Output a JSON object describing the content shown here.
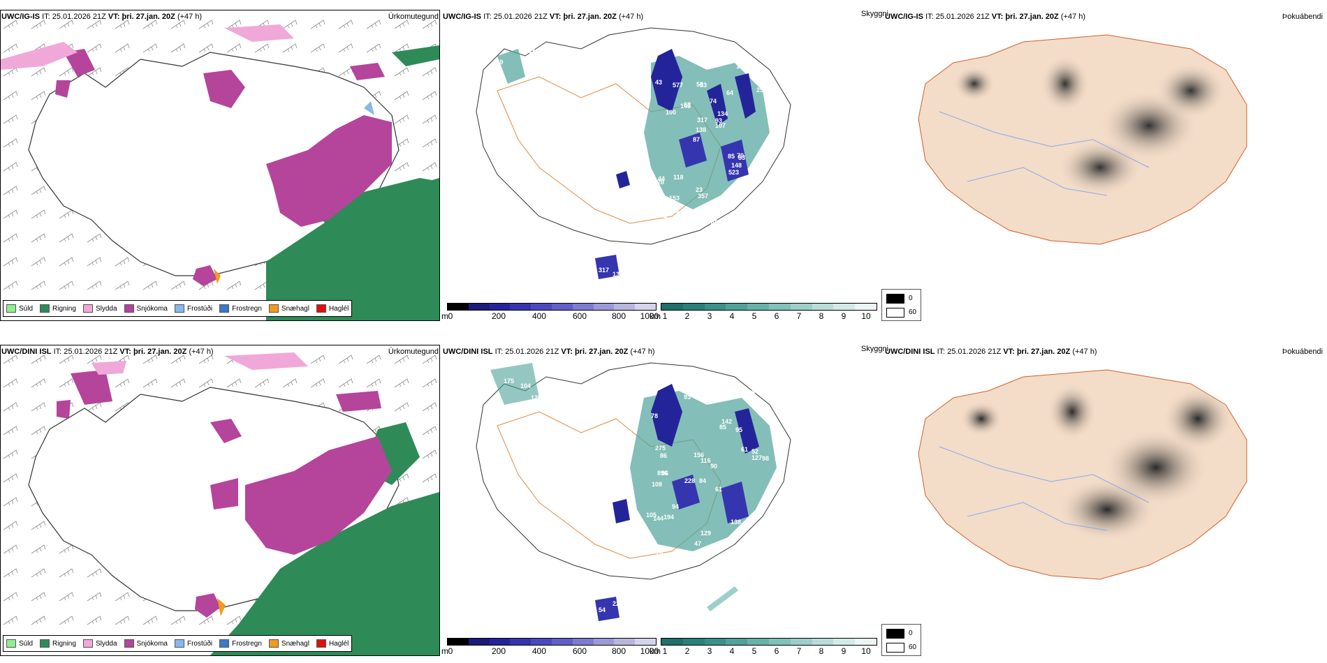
{
  "rows": [
    {
      "model": "UWC/IG-IS",
      "it_label": "IT:",
      "it_value": "25.01.2026 21Z",
      "vt_label": "VT:",
      "vt_value": "þri. 27.jan. 20Z",
      "lead": "(+47 h)",
      "cloud_labels": [
        "26",
        "119",
        "63",
        "87",
        "64",
        "61",
        "58",
        "74",
        "44",
        "68",
        "108",
        "153",
        "53",
        "134",
        "83",
        "43",
        "19",
        "82",
        "85",
        "130",
        "138",
        "23",
        "317",
        "577",
        "100",
        "118",
        "103",
        "106",
        "70",
        "430",
        "146",
        "100",
        "523",
        "91",
        "78",
        "93",
        "115",
        "357",
        "107",
        "128",
        "256",
        "145",
        "148",
        "93",
        "317",
        "138"
      ]
    },
    {
      "model": "UWC/DINI ISL",
      "it_label": "IT:",
      "it_value": "25.01.2026 21Z",
      "vt_label": "VT:",
      "vt_value": "þri. 27.jan. 20Z",
      "lead": "(+47 h)",
      "cloud_labels": [
        "175",
        "104",
        "129",
        "84",
        "61",
        "56",
        "78",
        "95",
        "108",
        "85",
        "90",
        "76",
        "93",
        "228",
        "120",
        "795",
        "129",
        "98",
        "61",
        "94",
        "86",
        "896",
        "161",
        "98",
        "105",
        "275",
        "116",
        "127",
        "110",
        "144",
        "216",
        "142",
        "194",
        "156",
        "138",
        "110",
        "52",
        "47",
        "54",
        "228"
      ]
    }
  ],
  "panel_titles": {
    "precip": "Úrkomutegund",
    "visibility": "Skyggni",
    "fog": "Þokuábendi"
  },
  "precip_legend": [
    {
      "label": "Súld",
      "color": "#90ee90"
    },
    {
      "label": "Rigning",
      "color": "#2e8b57"
    },
    {
      "label": "Slydda",
      "color": "#f0a8d8"
    },
    {
      "label": "Snjókoma",
      "color": "#b5449b"
    },
    {
      "label": "Frostúði",
      "color": "#87b8ea"
    },
    {
      "label": "Frostregn",
      "color": "#3a78c8"
    },
    {
      "label": "Snæhagl",
      "color": "#f09a20"
    },
    {
      "label": "Haglél",
      "color": "#e01010"
    }
  ],
  "ceiling_scale": {
    "unit": "m",
    "ticks": [
      "0",
      "200",
      "400",
      "600",
      "800",
      "1000"
    ],
    "colors": [
      "#000000",
      "#1a1a7a",
      "#24249a",
      "#3535b0",
      "#4a4ac0",
      "#6060c8",
      "#7c7cd0",
      "#9a9ad8",
      "#b6b6e0",
      "#d4d4ec"
    ]
  },
  "visibility_scale": {
    "unit": "km",
    "ticks": [
      "1",
      "2",
      "3",
      "4",
      "5",
      "6",
      "7",
      "8",
      "9",
      "10"
    ],
    "colors": [
      "#1f6f6a",
      "#2a807a",
      "#3a918a",
      "#4fa29a",
      "#66b2aa",
      "#80c1ba",
      "#9ccfc9",
      "#b8ddd8",
      "#d2ebe7",
      "#eaf6f4"
    ]
  },
  "fog_legend": {
    "dark": "0",
    "light": "60"
  },
  "colors": {
    "rain": "#2e8b57",
    "snow": "#b5449b",
    "sleet": "#f0a8d8",
    "road": "#e08a40",
    "fogbg": "#f3dcc8",
    "river": "#8aa8f0"
  }
}
